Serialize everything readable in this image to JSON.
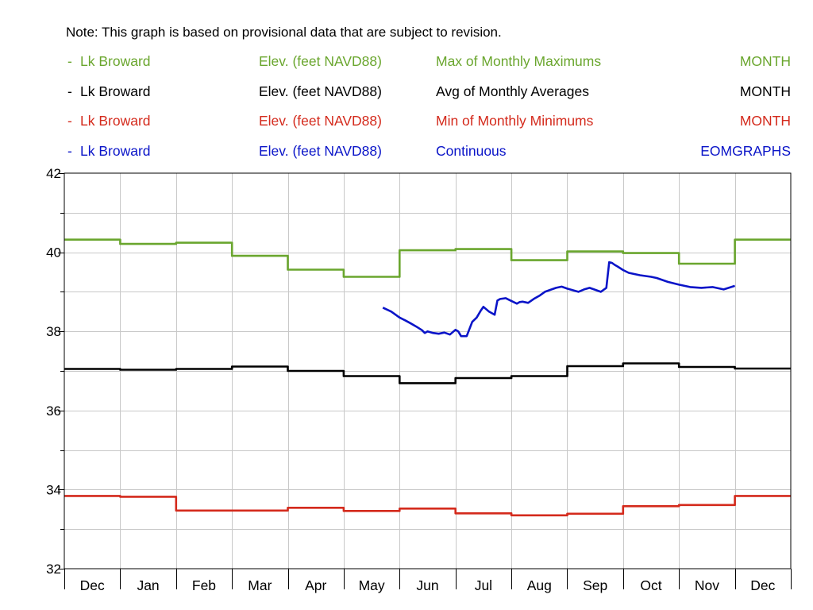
{
  "note": "Note: This graph is based on provisional data that are subject to revision.",
  "legend": [
    {
      "dash": "-",
      "station": "Lk Broward",
      "parameter": "Elev. (feet NAVD88)",
      "statistic": "Max of Monthly Maximums",
      "period": "MONTH",
      "color": "#6aa62e"
    },
    {
      "dash": "-",
      "station": "Lk Broward",
      "parameter": "Elev. (feet NAVD88)",
      "statistic": "Avg of Monthly Averages",
      "period": "MONTH",
      "color": "#000000"
    },
    {
      "dash": "-",
      "station": "Lk Broward",
      "parameter": "Elev. (feet NAVD88)",
      "statistic": "Min of Monthly Minimums",
      "period": "MONTH",
      "color": "#d42a1c"
    },
    {
      "dash": "-",
      "station": "Lk Broward",
      "parameter": "Elev. (feet NAVD88)",
      "statistic": "Continuous",
      "period": "EOMGRAPHS",
      "color": "#0a14c8"
    }
  ],
  "chart_data": {
    "type": "line",
    "title": "",
    "xlabel": "",
    "ylabel": "",
    "categories": [
      "Dec",
      "Jan",
      "Feb",
      "Mar",
      "Apr",
      "May",
      "Jun",
      "Jul",
      "Aug",
      "Sep",
      "Oct",
      "Nov",
      "Dec"
    ],
    "ylim": [
      32,
      42
    ],
    "yticks": [
      32,
      34,
      36,
      38,
      40,
      42
    ],
    "grid": true,
    "legend_position": "top",
    "series": [
      {
        "name": "Max of Monthly Maximums",
        "color": "#6aa62e",
        "style": "step",
        "values": [
          40.32,
          40.21,
          40.24,
          39.91,
          39.56,
          39.38,
          40.05,
          40.08,
          39.8,
          40.02,
          39.98,
          39.71,
          40.32
        ]
      },
      {
        "name": "Avg of Monthly Averages",
        "color": "#000000",
        "style": "step",
        "values": [
          37.05,
          37.03,
          37.05,
          37.11,
          37.0,
          36.87,
          36.69,
          36.82,
          36.87,
          37.12,
          37.19,
          37.1,
          37.06
        ]
      },
      {
        "name": "Min of Monthly Minimums",
        "color": "#d42a1c",
        "style": "step",
        "values": [
          33.84,
          33.82,
          33.47,
          33.47,
          33.54,
          33.46,
          33.52,
          33.4,
          33.35,
          33.39,
          33.58,
          33.61,
          33.84
        ]
      },
      {
        "name": "Continuous",
        "color": "#0a14c8",
        "style": "line",
        "x": [
          5.7,
          5.85,
          6.0,
          6.1,
          6.2,
          6.3,
          6.4,
          6.45,
          6.5,
          6.6,
          6.7,
          6.8,
          6.9,
          7.0,
          7.05,
          7.1,
          7.2,
          7.3,
          7.38,
          7.45,
          7.5,
          7.6,
          7.7,
          7.75,
          7.8,
          7.9,
          8.0,
          8.1,
          8.15,
          8.2,
          8.3,
          8.4,
          8.5,
          8.6,
          8.7,
          8.8,
          8.9,
          9.0,
          9.1,
          9.2,
          9.3,
          9.4,
          9.5,
          9.6,
          9.7,
          9.75,
          9.8,
          9.85,
          9.9,
          10.0,
          10.1,
          10.2,
          10.3,
          10.4,
          10.5,
          10.6,
          10.8,
          11.0,
          11.2,
          11.4,
          11.6,
          11.8,
          12.0
        ],
        "values": [
          38.6,
          38.5,
          38.35,
          38.28,
          38.2,
          38.12,
          38.03,
          37.96,
          38.0,
          37.96,
          37.94,
          37.97,
          37.92,
          38.04,
          38.0,
          37.88,
          37.88,
          38.24,
          38.35,
          38.52,
          38.62,
          38.5,
          38.42,
          38.78,
          38.82,
          38.84,
          38.77,
          38.7,
          38.74,
          38.75,
          38.72,
          38.82,
          38.9,
          39.0,
          39.05,
          39.1,
          39.13,
          39.08,
          39.04,
          39.0,
          39.06,
          39.1,
          39.05,
          39.0,
          39.1,
          39.75,
          39.73,
          39.68,
          39.64,
          39.55,
          39.48,
          39.45,
          39.42,
          39.4,
          39.38,
          39.35,
          39.25,
          39.18,
          39.12,
          39.1,
          39.12,
          39.06,
          39.15
        ]
      }
    ]
  }
}
